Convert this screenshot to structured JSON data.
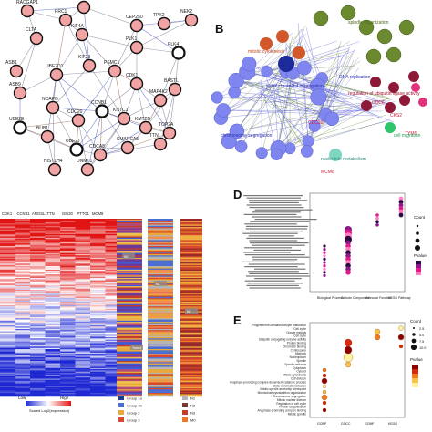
{
  "panel_labels": {
    "b": "B",
    "d": "D",
    "e": "E"
  },
  "network_a": {
    "nodes": [
      {
        "id": "RACGAP1",
        "ring": false
      },
      {
        "id": "KIF20A",
        "ring": false
      },
      {
        "id": "PRC1",
        "ring": false
      },
      {
        "id": "CLTA",
        "ring": false
      },
      {
        "id": "KIF4A",
        "ring": false
      },
      {
        "id": "CEP250",
        "ring": false
      },
      {
        "id": "TPX2",
        "ring": false
      },
      {
        "id": "NEK2",
        "ring": false
      },
      {
        "id": "PLK4",
        "ring": true
      },
      {
        "id": "PLK1",
        "ring": false
      },
      {
        "id": "ASB1",
        "ring": false
      },
      {
        "id": "UBE2D1",
        "ring": false
      },
      {
        "id": "KIF23",
        "ring": false
      },
      {
        "id": "PSMC1",
        "ring": false
      },
      {
        "id": "CDK1",
        "ring": false
      },
      {
        "id": "BASTL",
        "ring": false
      },
      {
        "id": "ASB9",
        "ring": false
      },
      {
        "id": "NCAPG",
        "ring": false
      },
      {
        "id": "MAP4K2",
        "ring": false
      },
      {
        "id": "UBE2E",
        "ring": true
      },
      {
        "id": "BUB1",
        "ring": false
      },
      {
        "id": "CDC20",
        "ring": false
      },
      {
        "id": "CCNB1",
        "ring": true
      },
      {
        "id": "KNTC1",
        "ring": false
      },
      {
        "id": "KMT2D",
        "ring": false
      },
      {
        "id": "TOP2A",
        "ring": false
      },
      {
        "id": "UBE2J",
        "ring": true
      },
      {
        "id": "CDCA8",
        "ring": false
      },
      {
        "id": "SMARCA5",
        "ring": false
      },
      {
        "id": "TTN",
        "ring": false
      },
      {
        "id": "HIST1H4",
        "ring": false
      },
      {
        "id": "DNMT1",
        "ring": false
      }
    ]
  },
  "go_network_b": {
    "labels": [
      "mitotic cytokinesis",
      "chromosome segregation",
      "spindle organization",
      "sister chromatid segregation",
      "CDC20",
      "CKS2",
      "regulation of ubiquitin ligase activity",
      "DNA replication",
      "CDC6",
      "TYMS",
      "cell migration",
      "MCM8",
      "nucleotide metabolism"
    ]
  },
  "heatmap_c": {
    "column_headers": [
      "CDK1",
      "CCNB1",
      "ANGSL1",
      "TTN",
      "ISG20",
      "PTTG1",
      "MCM8"
    ],
    "legend_low": "Low",
    "legend_high": "High",
    "legend_scale": "Scaled Log2(expression)",
    "annotation_texts": [
      "N0",
      "N1",
      "N2",
      "Tumor"
    ],
    "legend_items": [
      {
        "label": "Group 1a",
        "color": "#1f3a8a"
      },
      {
        "label": "Group 1b",
        "color": "#4b6fd0"
      },
      {
        "label": "Group 2",
        "color": "#e8a93a"
      },
      {
        "label": "Group 3",
        "color": "#d94a2c"
      },
      {
        "label": "N1",
        "color": "#b5b5b5"
      },
      {
        "label": "N2",
        "color": "#7a3b2e"
      },
      {
        "label": "N3",
        "color": "#c23e2a"
      },
      {
        "label": "M0",
        "color": "#e87a2a"
      }
    ]
  },
  "dotplot_d": {
    "categories": [
      "Biological Process",
      "Cellular Component",
      "Molecular Function",
      "KEGG Pathway"
    ],
    "legend_count": "Count",
    "legend_pvalue": "Pvalue",
    "colors": [
      "#2b0b3f",
      "#8a1a8a",
      "#e01a8a",
      "#ff7fc0"
    ]
  },
  "dotplot_e": {
    "categories": [
      "GOBP",
      "GOCC",
      "GOMF",
      "KEGG"
    ],
    "legend_count": "Count",
    "legend_pvalue": "Pvalue",
    "count_values": [
      "2.5",
      "5.0",
      "7.5",
      "10.0"
    ],
    "terms": [
      "Progesterone-mediated oocyte maturation",
      "Cell cycle",
      "Oocyte meiosis",
      "Cell cycle",
      "Ubiquitin conjugating enzyme activity",
      "Protein binding",
      "Chromatin binding",
      "Centrosome",
      "Midbody",
      "Nucleoplasm",
      "Spindle",
      "Spindle midzone",
      "Cytoplasm",
      "Cytosol",
      "Mitotic cytokinesis",
      "Cell division",
      "Anaphase-promoting complex-dependent catabolic process",
      "Sister chromatid cohesion",
      "Mitotic spindle assembly checkpoint",
      "Microtubule cytoskeleton organization",
      "Chromosome segregation",
      "Mitotic nuclear division",
      "Regulation of cell cycle",
      "Protein ubiquitination",
      "Anaphase-promoting complex binding",
      "Mitotic spindle"
    ]
  }
}
